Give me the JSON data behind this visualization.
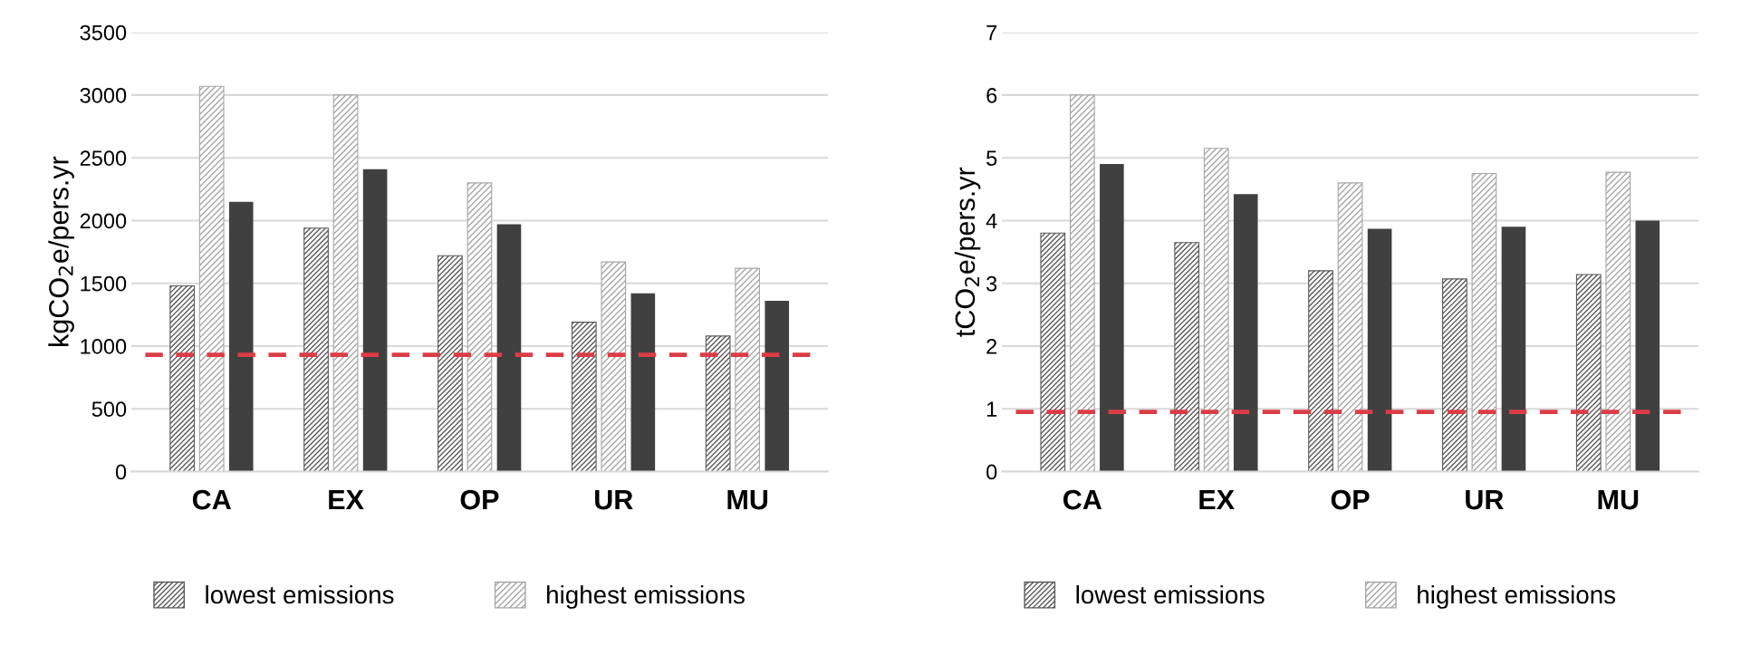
{
  "chart_data": [
    {
      "type": "bar",
      "ylabel": "kgCO$_{2}$e/pers.yr",
      "categories": [
        "CA",
        "EX",
        "OP",
        "UR",
        "MU"
      ],
      "series": [
        {
          "name": "lowest emissions",
          "color": "#595959",
          "values": [
            1480,
            1940,
            1720,
            1190,
            1080
          ]
        },
        {
          "name": "highest emissions",
          "color": "#a6a6a6",
          "values": [
            3070,
            3000,
            2300,
            1670,
            1620
          ]
        },
        {
          "color": "#404040",
          "values": [
            2150,
            2410,
            1970,
            1420,
            1360
          ]
        }
      ],
      "ylim": [
        0,
        3500
      ],
      "yticks": [
        0,
        500,
        1000,
        1500,
        2000,
        2500,
        3000,
        3500
      ],
      "grid": "y",
      "legend": "bottom",
      "ref_lines": [
        {
          "axis": "y",
          "value": 930,
          "color": "#dc3c46",
          "line_style": "dashed"
        }
      ]
    },
    {
      "type": "bar",
      "ylabel": "tCO$_{2}$e/pers.yr",
      "categories": [
        "CA",
        "EX",
        "OP",
        "UR",
        "MU"
      ],
      "series": [
        {
          "name": "lowest emissions",
          "color": "#595959",
          "values": [
            3.8,
            3.65,
            3.2,
            3.07,
            3.14
          ]
        },
        {
          "name": "highest emissions",
          "color": "#a6a6a6",
          "values": [
            6.0,
            5.15,
            4.6,
            4.75,
            4.77
          ]
        },
        {
          "color": "#404040",
          "values": [
            4.9,
            4.42,
            3.87,
            3.9,
            4.0
          ]
        }
      ],
      "ylim": [
        0,
        7
      ],
      "yticks": [
        0,
        1,
        2,
        3,
        4,
        5,
        6,
        7
      ],
      "grid": "y",
      "legend": "bottom",
      "ref_lines": [
        {
          "axis": "y",
          "value": 0.95,
          "color": "#dc3c46",
          "line_style": "dashed"
        }
      ]
    }
  ]
}
